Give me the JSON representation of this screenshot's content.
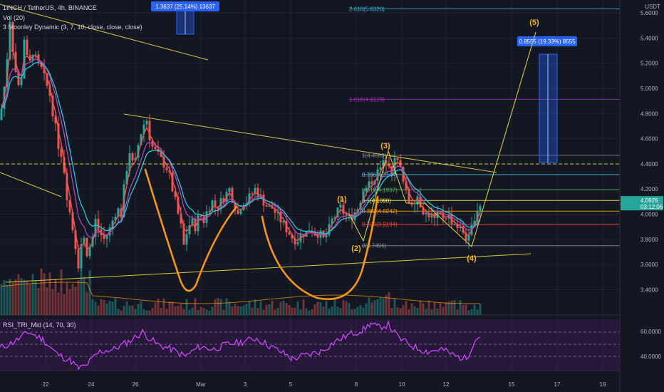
{
  "symbol_line": "1INCH / TetherUS, 4h, BINANCE",
  "vol_label": "Vol (20)",
  "ma_label": "3 Moonley Dynamic (3, 7, 10, close, close, close)",
  "rsi_label": "RSI_TRI_Mid (14, 70, 30)",
  "price_scale": {
    "currency": "USDT",
    "ticks": [
      "5.6000",
      "5.4000",
      "5.2000",
      "5.0000",
      "4.8000",
      "4.6000",
      "4.4000",
      "4.2000",
      "4.0000",
      "3.8000",
      "3.6000",
      "3.4000"
    ],
    "current_price": "4.0926",
    "countdown": "03:12:06"
  },
  "rsi_scale": {
    "ticks": [
      "60.0000",
      "40.0000"
    ]
  },
  "time_labels": [
    "22",
    "24",
    "26",
    "Mar",
    "3",
    "5",
    "8",
    "10",
    "12",
    "15",
    "17",
    "19"
  ],
  "measure_boxes": [
    {
      "label": "1.3637 (25.14%) 13637"
    },
    {
      "label": "0.8555 (19.33%) 8555"
    }
  ],
  "fib_labels": [
    {
      "label": "2.618(5.6320)",
      "color": "#2bb7d6"
    },
    {
      "label": "1.618(4.9129)",
      "color": "#9c27b0"
    },
    {
      "label": "1(4.4683)",
      "color": "#7f7f7f"
    },
    {
      "label": "0.786(4.3144)",
      "color": "#5fb9d3"
    },
    {
      "label": "0.618(4.1937)",
      "color": "#4caf50"
    },
    {
      "label": "0.5(4.1090)",
      "color": "#ffeb3b"
    },
    {
      "label": "0.382(4.0242)",
      "color": "#ff9800"
    },
    {
      "label": "0.236(3.9194)",
      "color": "#f44336"
    },
    {
      "label": "0(3.7496)",
      "color": "#8c8c8c"
    }
  ],
  "wave_labels": [
    "(1)",
    "(2)",
    "(3)",
    "(4)",
    "(5)"
  ],
  "colors": {
    "background": "#131722",
    "up": "#26a69a",
    "down": "#ef5350",
    "trend": "#d4c741",
    "cup": "#f7931a",
    "rsi": "#d040ff",
    "measure": "#2962ff"
  }
}
